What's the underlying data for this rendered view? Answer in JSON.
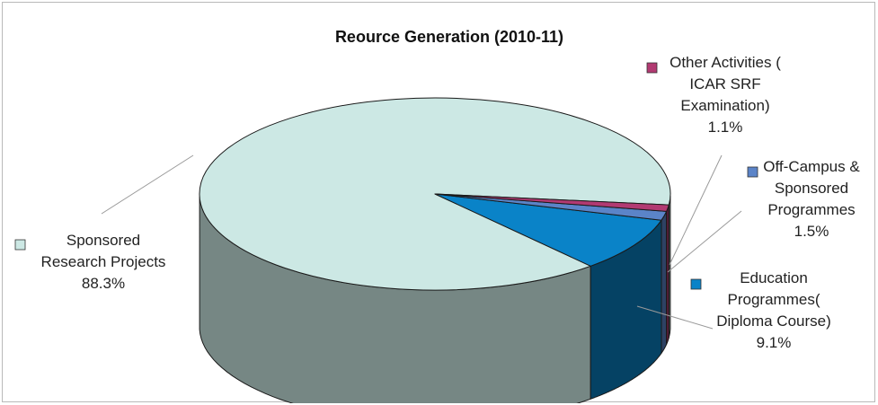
{
  "chart_data": {
    "type": "pie",
    "variant": "3d-exploded",
    "title": "Reource   Generation (2010-11)",
    "slices": [
      {
        "lines": [
          "Sponsored",
          "Research Projects",
          "88.3%"
        ],
        "value": 88.3,
        "color": "#cce8e4"
      },
      {
        "lines": [
          "Education",
          "Programmes(",
          "Diploma Course)",
          "9.1%"
        ],
        "value": 9.1,
        "color": "#0a83c8"
      },
      {
        "lines": [
          "Off-Campus &",
          "Sponsored",
          "Programmes",
          "1.5%"
        ],
        "value": 1.5,
        "color": "#5b84c8"
      },
      {
        "lines": [
          "Other Activities (",
          "ICAR SRF",
          "Examination)",
          "1.1%"
        ],
        "value": 1.1,
        "color": "#b23a72"
      }
    ],
    "legend": "inline-labels"
  }
}
